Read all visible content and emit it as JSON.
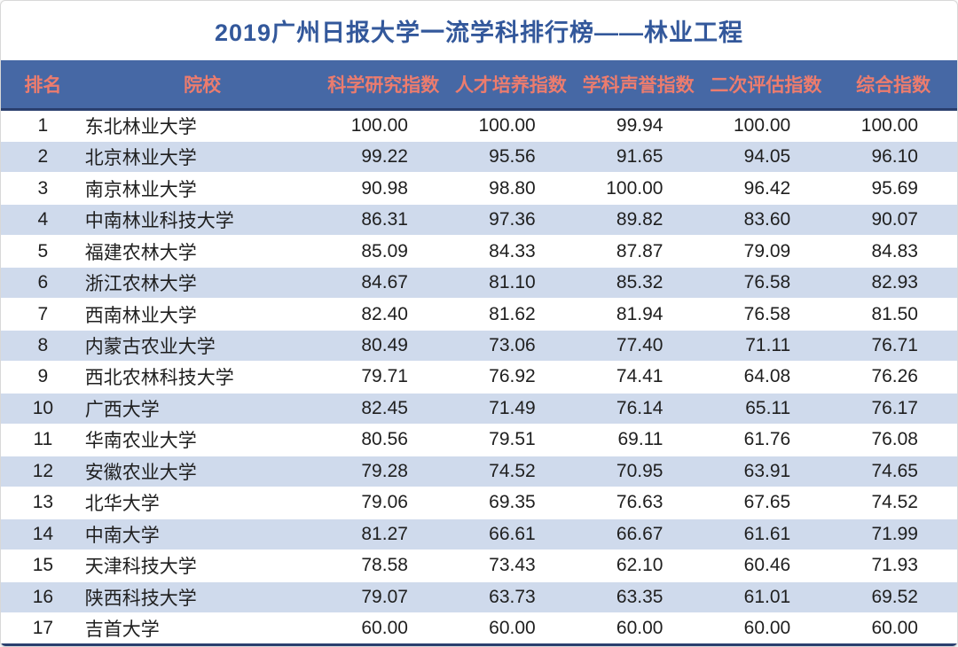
{
  "title": "2019广州日报大学一流学科排行榜——林业工程",
  "table": {
    "headers": [
      "排名",
      "院校",
      "科学研究指数",
      "人才培养指数",
      "学科声誉指数",
      "二次评估指数",
      "综合指数"
    ],
    "rows": [
      {
        "rank": "1",
        "school": "东北林业大学",
        "research": "100.00",
        "talent": "100.00",
        "reputation": "99.94",
        "secondary": "100.00",
        "overall": "100.00"
      },
      {
        "rank": "2",
        "school": "北京林业大学",
        "research": "99.22",
        "talent": "95.56",
        "reputation": "91.65",
        "secondary": "94.05",
        "overall": "96.10"
      },
      {
        "rank": "3",
        "school": "南京林业大学",
        "research": "90.98",
        "talent": "98.80",
        "reputation": "100.00",
        "secondary": "96.42",
        "overall": "95.69"
      },
      {
        "rank": "4",
        "school": "中南林业科技大学",
        "research": "86.31",
        "talent": "97.36",
        "reputation": "89.82",
        "secondary": "83.60",
        "overall": "90.07"
      },
      {
        "rank": "5",
        "school": "福建农林大学",
        "research": "85.09",
        "talent": "84.33",
        "reputation": "87.87",
        "secondary": "79.09",
        "overall": "84.83"
      },
      {
        "rank": "6",
        "school": "浙江农林大学",
        "research": "84.67",
        "talent": "81.10",
        "reputation": "85.32",
        "secondary": "76.58",
        "overall": "82.93"
      },
      {
        "rank": "7",
        "school": "西南林业大学",
        "research": "82.40",
        "talent": "81.62",
        "reputation": "81.94",
        "secondary": "76.58",
        "overall": "81.50"
      },
      {
        "rank": "8",
        "school": "内蒙古农业大学",
        "research": "80.49",
        "talent": "73.06",
        "reputation": "77.40",
        "secondary": "71.11",
        "overall": "76.71"
      },
      {
        "rank": "9",
        "school": "西北农林科技大学",
        "research": "79.71",
        "talent": "76.92",
        "reputation": "74.41",
        "secondary": "64.08",
        "overall": "76.26"
      },
      {
        "rank": "10",
        "school": "广西大学",
        "research": "82.45",
        "talent": "71.49",
        "reputation": "76.14",
        "secondary": "65.11",
        "overall": "76.17"
      },
      {
        "rank": "11",
        "school": "华南农业大学",
        "research": "80.56",
        "talent": "79.51",
        "reputation": "69.11",
        "secondary": "61.76",
        "overall": "76.08"
      },
      {
        "rank": "12",
        "school": "安徽农业大学",
        "research": "79.28",
        "talent": "74.52",
        "reputation": "70.95",
        "secondary": "63.91",
        "overall": "74.65"
      },
      {
        "rank": "13",
        "school": "北华大学",
        "research": "79.06",
        "talent": "69.35",
        "reputation": "76.63",
        "secondary": "67.65",
        "overall": "74.52"
      },
      {
        "rank": "14",
        "school": "中南大学",
        "research": "81.27",
        "talent": "66.61",
        "reputation": "66.67",
        "secondary": "61.61",
        "overall": "71.99"
      },
      {
        "rank": "15",
        "school": "天津科技大学",
        "research": "78.58",
        "talent": "73.43",
        "reputation": "62.10",
        "secondary": "60.46",
        "overall": "71.93"
      },
      {
        "rank": "16",
        "school": "陕西科技大学",
        "research": "79.07",
        "talent": "63.73",
        "reputation": "63.35",
        "secondary": "61.01",
        "overall": "69.52"
      },
      {
        "rank": "17",
        "school": "吉首大学",
        "research": "60.00",
        "talent": "60.00",
        "reputation": "60.00",
        "secondary": "60.00",
        "overall": "60.00"
      }
    ]
  },
  "colors": {
    "title_text": "#33589B",
    "header_bg": "#4668A5",
    "header_text": "#EC7C6E",
    "band_row_bg": "#CFDAEC",
    "divider_navy": "#2A3F6E",
    "body_text": "#1F1F1F"
  },
  "chart_data": {
    "type": "table",
    "title": "2019广州日报大学一流学科排行榜——林业工程",
    "columns": [
      "排名",
      "院校",
      "科学研究指数",
      "人才培养指数",
      "学科声誉指数",
      "二次评估指数",
      "综合指数"
    ],
    "rows": [
      [
        "1",
        "东北林业大学",
        100.0,
        100.0,
        99.94,
        100.0,
        100.0
      ],
      [
        "2",
        "北京林业大学",
        99.22,
        95.56,
        91.65,
        94.05,
        96.1
      ],
      [
        "3",
        "南京林业大学",
        90.98,
        98.8,
        100.0,
        96.42,
        95.69
      ],
      [
        "4",
        "中南林业科技大学",
        86.31,
        97.36,
        89.82,
        83.6,
        90.07
      ],
      [
        "5",
        "福建农林大学",
        85.09,
        84.33,
        87.87,
        79.09,
        84.83
      ],
      [
        "6",
        "浙江农林大学",
        84.67,
        81.1,
        85.32,
        76.58,
        82.93
      ],
      [
        "7",
        "西南林业大学",
        82.4,
        81.62,
        81.94,
        76.58,
        81.5
      ],
      [
        "8",
        "内蒙古农业大学",
        80.49,
        73.06,
        77.4,
        71.11,
        76.71
      ],
      [
        "9",
        "西北农林科技大学",
        79.71,
        76.92,
        74.41,
        64.08,
        76.26
      ],
      [
        "10",
        "广西大学",
        82.45,
        71.49,
        76.14,
        65.11,
        76.17
      ],
      [
        "11",
        "华南农业大学",
        80.56,
        79.51,
        69.11,
        61.76,
        76.08
      ],
      [
        "12",
        "安徽农业大学",
        79.28,
        74.52,
        70.95,
        63.91,
        74.65
      ],
      [
        "13",
        "北华大学",
        79.06,
        69.35,
        76.63,
        67.65,
        74.52
      ],
      [
        "14",
        "中南大学",
        81.27,
        66.61,
        66.67,
        61.61,
        71.99
      ],
      [
        "15",
        "天津科技大学",
        78.58,
        73.43,
        62.1,
        60.46,
        71.93
      ],
      [
        "16",
        "陕西科技大学",
        79.07,
        63.73,
        63.35,
        61.01,
        69.52
      ],
      [
        "17",
        "吉首大学",
        60.0,
        60.0,
        60.0,
        60.0,
        60.0
      ]
    ]
  }
}
